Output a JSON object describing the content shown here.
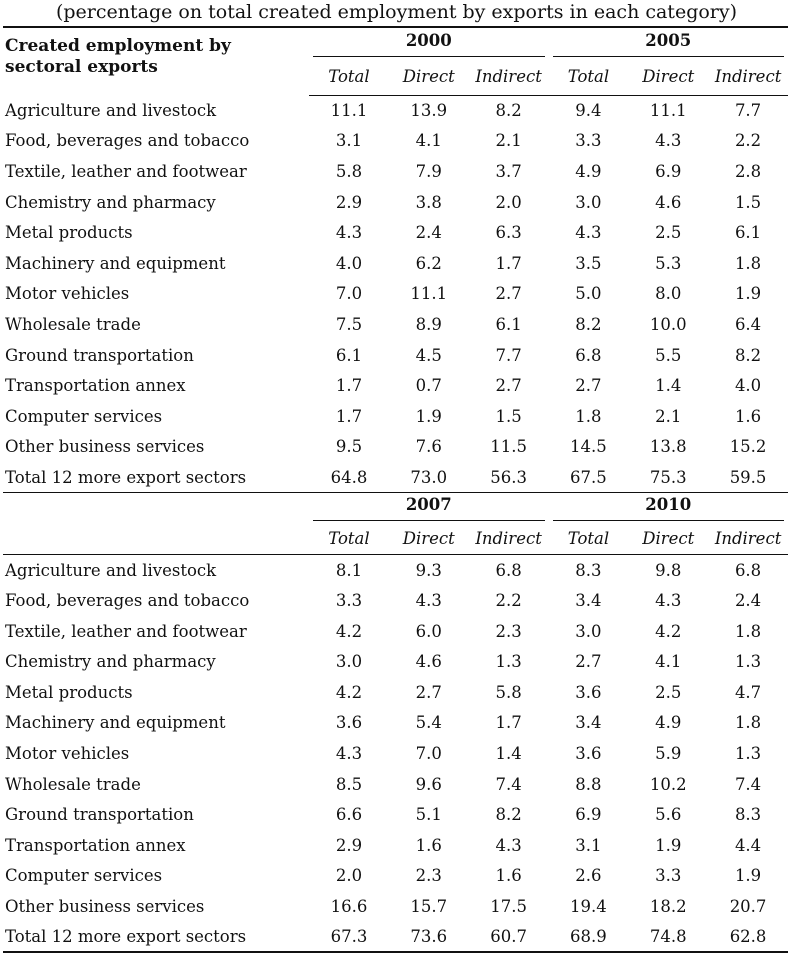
{
  "subtitle": "(percentage on total created employment by exports in each category)",
  "corner_label_line1": "Created employment by",
  "corner_label_line2": "sectoral exports",
  "sub_headers": [
    "Total",
    "Direct",
    "Indirect"
  ],
  "panels": [
    {
      "years": [
        "2000",
        "2005"
      ],
      "rows": [
        {
          "label": "Agriculture and livestock",
          "values": [
            "11.1",
            "13.9",
            "8.2",
            "9.4",
            "11.1",
            "7.7"
          ]
        },
        {
          "label": "Food, beverages and tobacco",
          "values": [
            "3.1",
            "4.1",
            "2.1",
            "3.3",
            "4.3",
            "2.2"
          ]
        },
        {
          "label": "Textile, leather and footwear",
          "values": [
            "5.8",
            "7.9",
            "3.7",
            "4.9",
            "6.9",
            "2.8"
          ]
        },
        {
          "label": "Chemistry and pharmacy",
          "values": [
            "2.9",
            "3.8",
            "2.0",
            "3.0",
            "4.6",
            "1.5"
          ]
        },
        {
          "label": "Metal products",
          "values": [
            "4.3",
            "2.4",
            "6.3",
            "4.3",
            "2.5",
            "6.1"
          ]
        },
        {
          "label": "Machinery and equipment",
          "values": [
            "4.0",
            "6.2",
            "1.7",
            "3.5",
            "5.3",
            "1.8"
          ]
        },
        {
          "label": "Motor vehicles",
          "values": [
            "7.0",
            "11.1",
            "2.7",
            "5.0",
            "8.0",
            "1.9"
          ]
        },
        {
          "label": "Wholesale trade",
          "values": [
            "7.5",
            "8.9",
            "6.1",
            "8.2",
            "10.0",
            "6.4"
          ]
        },
        {
          "label": "Ground transportation",
          "values": [
            "6.1",
            "4.5",
            "7.7",
            "6.8",
            "5.5",
            "8.2"
          ]
        },
        {
          "label": "Transportation annex",
          "values": [
            "1.7",
            "0.7",
            "2.7",
            "2.7",
            "1.4",
            "4.0"
          ]
        },
        {
          "label": "Computer services",
          "values": [
            "1.7",
            "1.9",
            "1.5",
            "1.8",
            "2.1",
            "1.6"
          ]
        },
        {
          "label": "Other business services",
          "values": [
            "9.5",
            "7.6",
            "11.5",
            "14.5",
            "13.8",
            "15.2"
          ]
        },
        {
          "label": "Total 12 more export sectors",
          "values": [
            "64.8",
            "73.0",
            "56.3",
            "67.5",
            "75.3",
            "59.5"
          ]
        }
      ]
    },
    {
      "years": [
        "2007",
        "2010"
      ],
      "rows": [
        {
          "label": "Agriculture and livestock",
          "values": [
            "8.1",
            "9.3",
            "6.8",
            "8.3",
            "9.8",
            "6.8"
          ]
        },
        {
          "label": "Food, beverages and tobacco",
          "values": [
            "3.3",
            "4.3",
            "2.2",
            "3.4",
            "4.3",
            "2.4"
          ]
        },
        {
          "label": "Textile, leather and footwear",
          "values": [
            "4.2",
            "6.0",
            "2.3",
            "3.0",
            "4.2",
            "1.8"
          ]
        },
        {
          "label": "Chemistry and pharmacy",
          "values": [
            "3.0",
            "4.6",
            "1.3",
            "2.7",
            "4.1",
            "1.3"
          ]
        },
        {
          "label": "Metal products",
          "values": [
            "4.2",
            "2.7",
            "5.8",
            "3.6",
            "2.5",
            "4.7"
          ]
        },
        {
          "label": "Machinery and equipment",
          "values": [
            "3.6",
            "5.4",
            "1.7",
            "3.4",
            "4.9",
            "1.8"
          ]
        },
        {
          "label": "Motor vehicles",
          "values": [
            "4.3",
            "7.0",
            "1.4",
            "3.6",
            "5.9",
            "1.3"
          ]
        },
        {
          "label": "Wholesale trade",
          "values": [
            "8.5",
            "9.6",
            "7.4",
            "8.8",
            "10.2",
            "7.4"
          ]
        },
        {
          "label": "Ground transportation",
          "values": [
            "6.6",
            "5.1",
            "8.2",
            "6.9",
            "5.6",
            "8.3"
          ]
        },
        {
          "label": "Transportation annex",
          "values": [
            "2.9",
            "1.6",
            "4.3",
            "3.1",
            "1.9",
            "4.4"
          ]
        },
        {
          "label": "Computer services",
          "values": [
            "2.0",
            "2.3",
            "1.6",
            "2.6",
            "3.3",
            "1.9"
          ]
        },
        {
          "label": "Other business services",
          "values": [
            "16.6",
            "15.7",
            "17.5",
            "19.4",
            "18.2",
            "20.7"
          ]
        },
        {
          "label": "Total 12 more export sectors",
          "values": [
            "67.3",
            "73.6",
            "60.7",
            "68.9",
            "74.8",
            "62.8"
          ]
        }
      ]
    }
  ]
}
